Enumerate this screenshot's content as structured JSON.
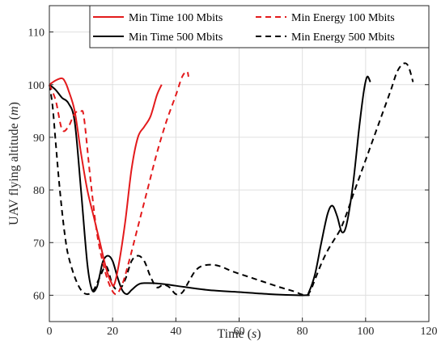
{
  "chart_data": {
    "type": "line",
    "xlabel": "Time",
    "xlabel_unit": "s",
    "ylabel": "UAV flying altitude",
    "ylabel_unit": "m",
    "xlim": [
      0,
      120
    ],
    "ylim": [
      55,
      115
    ],
    "xticks": [
      0,
      20,
      40,
      60,
      80,
      100,
      120
    ],
    "yticks": [
      60,
      70,
      80,
      90,
      100,
      110
    ],
    "grid": true,
    "legend_position": "top-right",
    "series": [
      {
        "name": "Min Time 100 Mbits",
        "color": "#e31a1c",
        "dash": "solid",
        "points": [
          [
            0,
            100
          ],
          [
            2,
            100.8
          ],
          [
            4,
            101.2
          ],
          [
            5,
            100.5
          ],
          [
            6,
            99
          ],
          [
            8,
            95
          ],
          [
            10,
            87
          ],
          [
            12,
            80
          ],
          [
            14,
            75
          ],
          [
            16,
            70
          ],
          [
            18,
            65
          ],
          [
            19.5,
            62.5
          ],
          [
            20.5,
            62
          ],
          [
            22,
            66
          ],
          [
            24,
            74
          ],
          [
            26,
            84
          ],
          [
            28,
            90
          ],
          [
            30,
            92
          ],
          [
            32,
            94
          ],
          [
            34,
            98
          ],
          [
            35.5,
            100
          ]
        ]
      },
      {
        "name": "Min Energy 100 Mbits",
        "color": "#e31a1c",
        "dash": "dashed",
        "points": [
          [
            0,
            100
          ],
          [
            2,
            97
          ],
          [
            4,
            91.5
          ],
          [
            6,
            92
          ],
          [
            8,
            94.5
          ],
          [
            10,
            95
          ],
          [
            11,
            93.5
          ],
          [
            13,
            82
          ],
          [
            15,
            72
          ],
          [
            17,
            66
          ],
          [
            19,
            62
          ],
          [
            21,
            60.2
          ],
          [
            23,
            62
          ],
          [
            25,
            66
          ],
          [
            28,
            73
          ],
          [
            31,
            80
          ],
          [
            34,
            87
          ],
          [
            37,
            93
          ],
          [
            40,
            98
          ],
          [
            42,
            101.5
          ],
          [
            43.5,
            102.5
          ],
          [
            44,
            101.5
          ]
        ]
      },
      {
        "name": "Min Time 500 Mbits",
        "color": "#000000",
        "dash": "solid",
        "points": [
          [
            0,
            100
          ],
          [
            2,
            99
          ],
          [
            4,
            97.5
          ],
          [
            6,
            96.5
          ],
          [
            8,
            93
          ],
          [
            10,
            80
          ],
          [
            12,
            66
          ],
          [
            13.5,
            61
          ],
          [
            15,
            61.5
          ],
          [
            16,
            64
          ],
          [
            17,
            66.5
          ],
          [
            18.5,
            67.5
          ],
          [
            20,
            66.5
          ],
          [
            21.5,
            63.5
          ],
          [
            23,
            61
          ],
          [
            24.5,
            60.2
          ],
          [
            26,
            61
          ],
          [
            28,
            62
          ],
          [
            30,
            62.3
          ],
          [
            35,
            62.2
          ],
          [
            40,
            61.8
          ],
          [
            50,
            61
          ],
          [
            60,
            60.6
          ],
          [
            70,
            60.2
          ],
          [
            81,
            60
          ],
          [
            82,
            60.5
          ],
          [
            84,
            64
          ],
          [
            86,
            70
          ],
          [
            88,
            75.5
          ],
          [
            89.5,
            77
          ],
          [
            91,
            75
          ],
          [
            92.5,
            72
          ],
          [
            94,
            73.5
          ],
          [
            96,
            81
          ],
          [
            98,
            92
          ],
          [
            99.5,
            99
          ],
          [
            100.5,
            101.5
          ],
          [
            101.5,
            100.5
          ]
        ]
      },
      {
        "name": "Min Energy 500 Mbits",
        "color": "#000000",
        "dash": "dashed",
        "points": [
          [
            0,
            100
          ],
          [
            1,
            96
          ],
          [
            2,
            89
          ],
          [
            3,
            82
          ],
          [
            4,
            76
          ],
          [
            5,
            71
          ],
          [
            6,
            67.5
          ],
          [
            8,
            63.5
          ],
          [
            10,
            61
          ],
          [
            12,
            60.2
          ],
          [
            14,
            61
          ],
          [
            16,
            63.5
          ],
          [
            18,
            65.5
          ],
          [
            20,
            62
          ],
          [
            22,
            61
          ],
          [
            24,
            63
          ],
          [
            26,
            66.5
          ],
          [
            28,
            67.5
          ],
          [
            30,
            66.5
          ],
          [
            32,
            63.5
          ],
          [
            34,
            61.5
          ],
          [
            36,
            62
          ],
          [
            38,
            61.5
          ],
          [
            40,
            60.2
          ],
          [
            42,
            60.5
          ],
          [
            44,
            62.5
          ],
          [
            46,
            64.5
          ],
          [
            48,
            65.5
          ],
          [
            51,
            65.8
          ],
          [
            54,
            65.5
          ],
          [
            58,
            64.5
          ],
          [
            63,
            63.5
          ],
          [
            68,
            62.5
          ],
          [
            73,
            61.5
          ],
          [
            77,
            60.8
          ],
          [
            81,
            60
          ],
          [
            82.5,
            60.8
          ],
          [
            84,
            63
          ],
          [
            86,
            66
          ],
          [
            88,
            68.5
          ],
          [
            90,
            70.5
          ],
          [
            92,
            72.5
          ],
          [
            94,
            75.5
          ],
          [
            96,
            79
          ],
          [
            99,
            84
          ],
          [
            102,
            89
          ],
          [
            105,
            94
          ],
          [
            108,
            99
          ],
          [
            110,
            102.5
          ],
          [
            112,
            104
          ],
          [
            113.5,
            103.5
          ],
          [
            115,
            100.5
          ]
        ]
      }
    ]
  }
}
